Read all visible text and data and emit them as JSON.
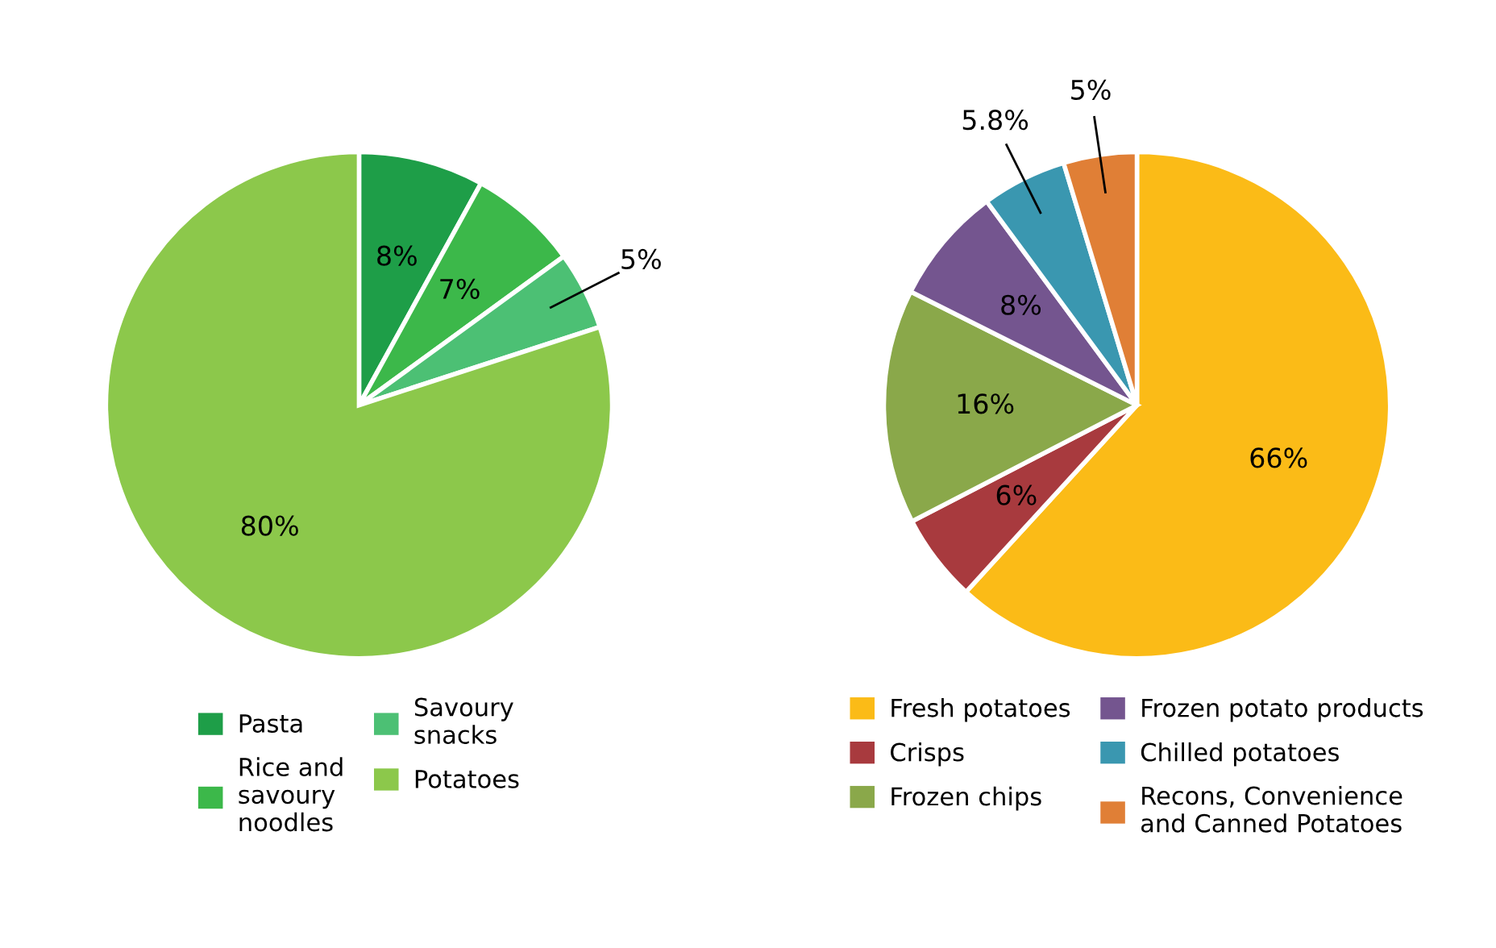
{
  "chart_data": [
    {
      "type": "pie",
      "categories": [
        "Pasta",
        "Rice and\nsavoury\nnoodles",
        "Savoury\nsnacks",
        "Potatoes"
      ],
      "values": [
        8,
        7,
        5,
        80
      ],
      "value_labels": [
        "8%",
        "7%",
        "5%",
        "80%"
      ],
      "colors": [
        "#1e9e48",
        "#3cb84a",
        "#4cc074",
        "#8cc84b"
      ],
      "legend": "bottom"
    },
    {
      "type": "pie",
      "categories": [
        "Fresh potatoes",
        "Crisps",
        "Frozen chips",
        "Frozen potato products",
        "Chilled potatoes",
        "Recons, Convenience\nand Canned Potatoes"
      ],
      "values": [
        66,
        6,
        16,
        8,
        5.8,
        5
      ],
      "value_labels": [
        "66%",
        "6%",
        "16%",
        "8%",
        "5.8%",
        "5%"
      ],
      "colors": [
        "#fbbb17",
        "#a83a3e",
        "#8aa84a",
        "#74558f",
        "#3a97b0",
        "#e07f36"
      ],
      "legend": "bottom"
    }
  ]
}
